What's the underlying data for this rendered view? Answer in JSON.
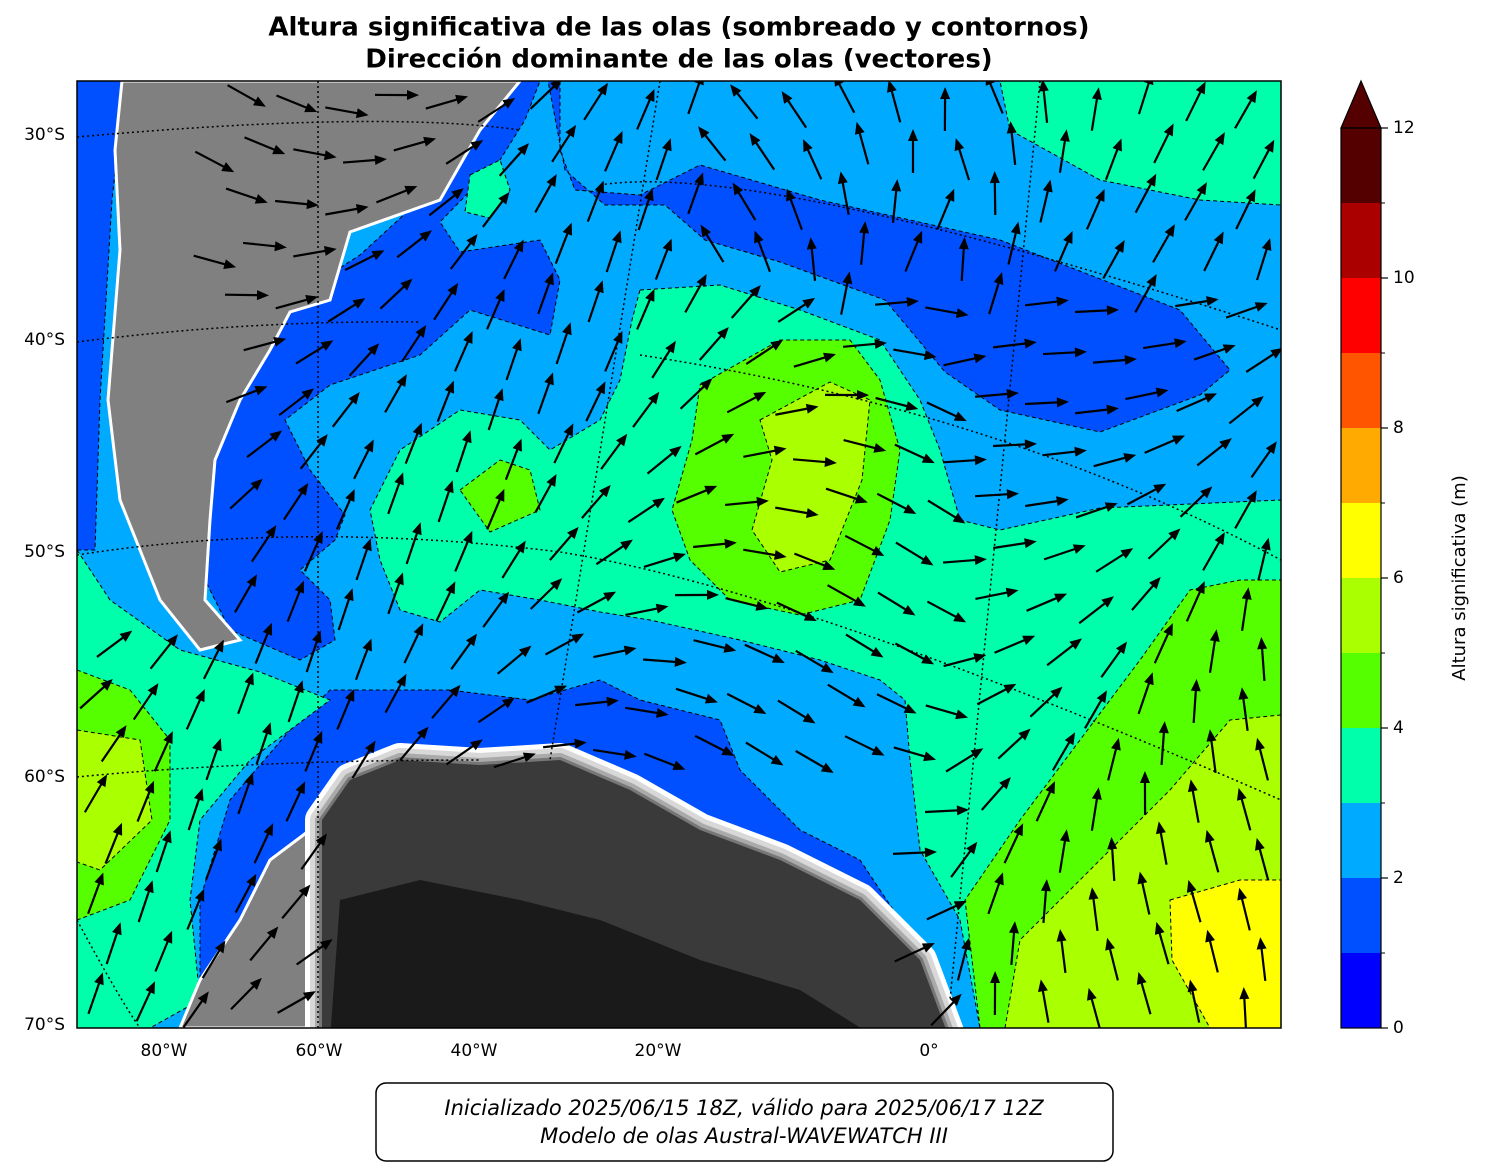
{
  "title": [
    "Altura significativa de las olas (sombreado y contornos)",
    "Dirección dominante de las olas (vectores)"
  ],
  "lat_labels": [
    "30°S",
    "40°S",
    "50°S",
    "60°S",
    "70°S"
  ],
  "lon_labels": [
    "80°W",
    "60°W",
    "40°W",
    "20°W",
    "0°"
  ],
  "colorbar": {
    "levels": [
      0,
      1,
      2,
      3,
      4,
      5,
      6,
      7,
      8,
      9,
      10,
      11,
      12
    ],
    "colors": [
      "#0000ff",
      "#0050ff",
      "#00aaff",
      "#00ffaa",
      "#55ff00",
      "#aaff00",
      "#ffff00",
      "#ffaa00",
      "#ff5500",
      "#ff0000",
      "#aa0000",
      "#550000"
    ],
    "ticks": [
      0,
      2,
      4,
      6,
      8,
      10,
      12
    ],
    "label": "Altura significativa (m)"
  },
  "footer": [
    "Inicializado 2025/06/15 18Z, válido para 2025/06/17 12Z",
    "Modelo de olas Austral-WAVEWATCH III"
  ]
}
